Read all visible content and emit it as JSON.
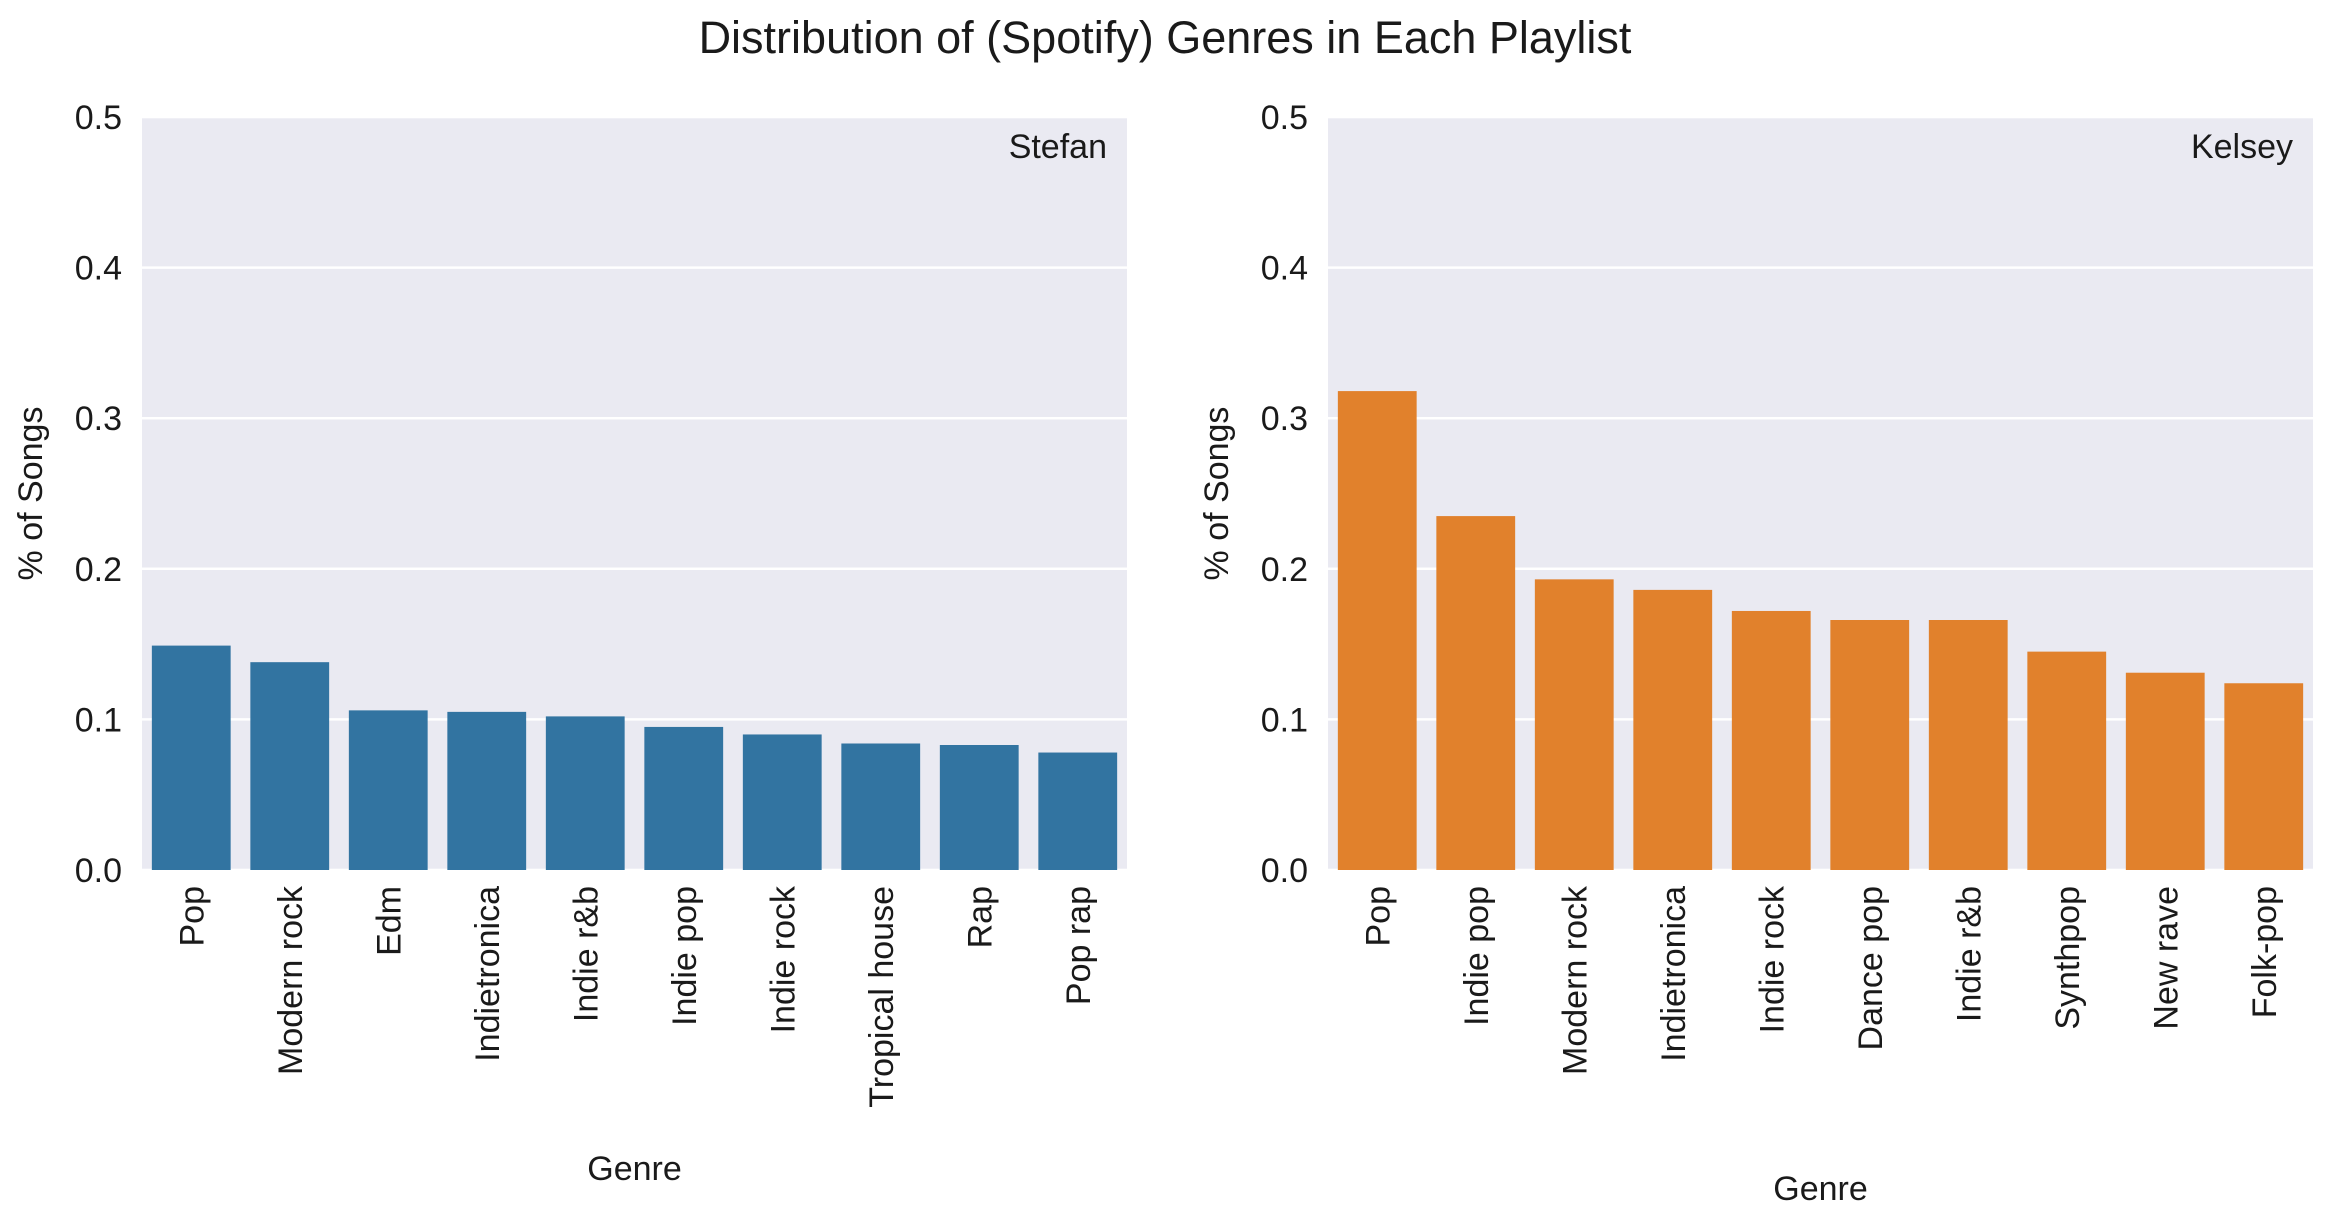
{
  "figure": {
    "title": "Distribution of (Spotify) Genres in Each Playlist"
  },
  "chart_data": [
    {
      "type": "bar",
      "panel_label": "Stefan",
      "xlabel": "Genre",
      "ylabel": "% of Songs",
      "ylim": [
        0,
        0.5
      ],
      "yticks": [
        "0.0",
        "0.1",
        "0.2",
        "0.3",
        "0.4",
        "0.5"
      ],
      "grid": true,
      "color": "#3274a1",
      "categories": [
        "Pop",
        "Modern rock",
        "Edm",
        "Indietronica",
        "Indie r&b",
        "Indie pop",
        "Indie rock",
        "Tropical house",
        "Rap",
        "Pop rap"
      ],
      "values": [
        0.149,
        0.138,
        0.106,
        0.105,
        0.102,
        0.095,
        0.09,
        0.084,
        0.083,
        0.078
      ]
    },
    {
      "type": "bar",
      "panel_label": "Kelsey",
      "xlabel": "Genre",
      "ylabel": "% of Songs",
      "ylim": [
        0,
        0.5
      ],
      "yticks": [
        "0.0",
        "0.1",
        "0.2",
        "0.3",
        "0.4",
        "0.5"
      ],
      "grid": true,
      "color": "#e1812c",
      "categories": [
        "Pop",
        "Indie pop",
        "Modern rock",
        "Indietronica",
        "Indie rock",
        "Dance pop",
        "Indie r&b",
        "Synthpop",
        "New rave",
        "Folk-pop"
      ],
      "values": [
        0.318,
        0.235,
        0.193,
        0.186,
        0.172,
        0.166,
        0.166,
        0.145,
        0.131,
        0.124
      ]
    }
  ]
}
